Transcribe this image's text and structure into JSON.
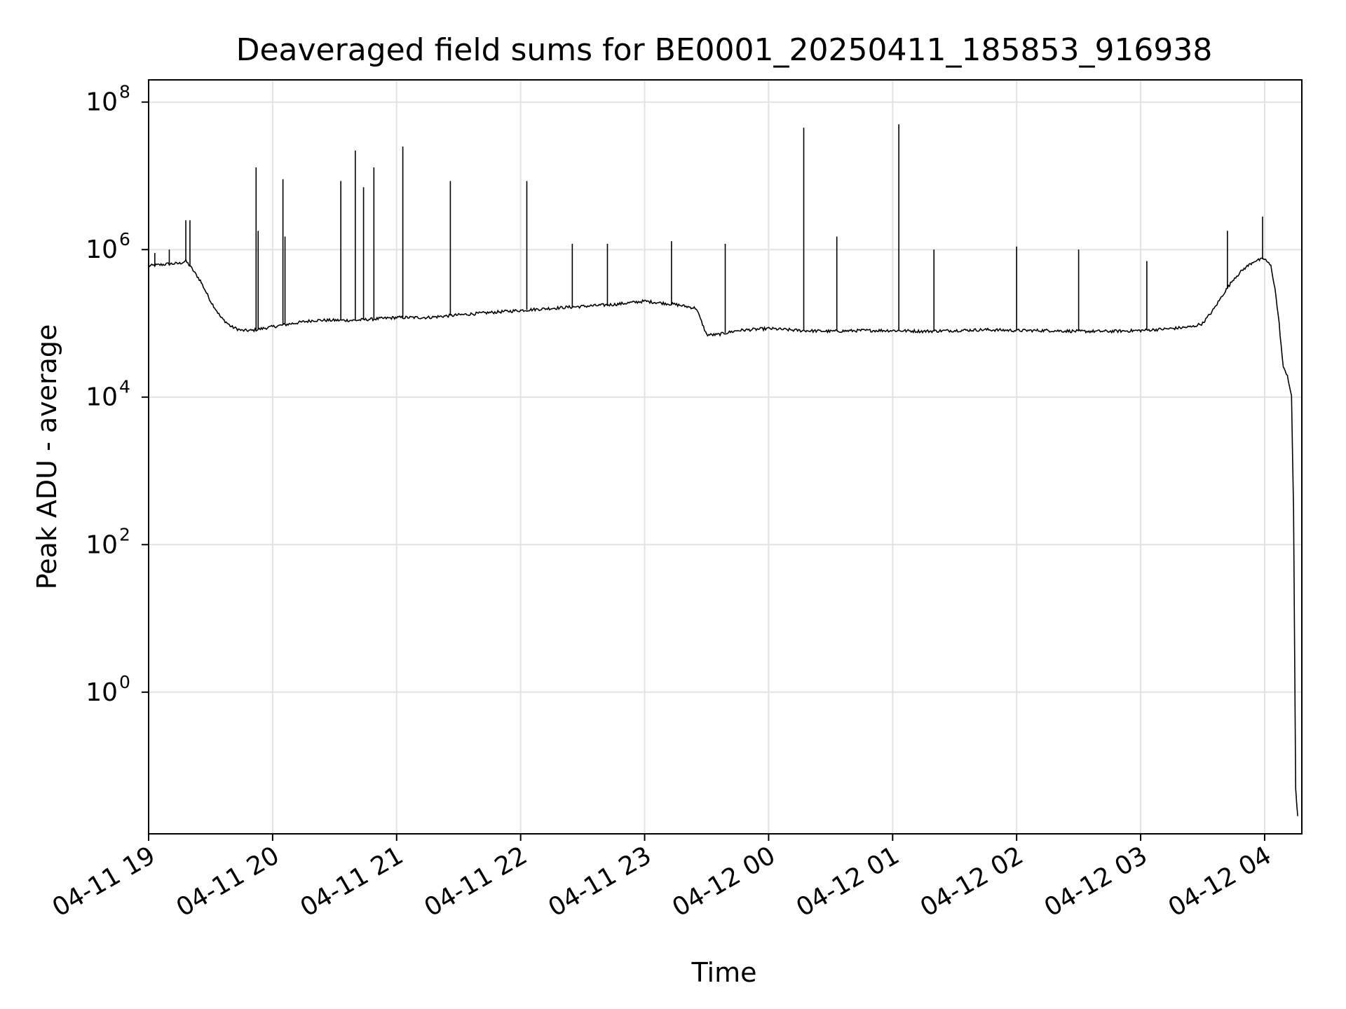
{
  "chart_data": {
    "type": "line",
    "title": "Deaveraged field sums for BE0001_20250411_185853_916938",
    "xlabel": "Time",
    "ylabel": "Peak ADU - average",
    "yscale": "log",
    "ylim": [
      0.012,
      200000000
    ],
    "xlim": [
      "04-11 19:00",
      "04-12 04:18"
    ],
    "grid": true,
    "line_color": "#000000",
    "x_ticks": [
      "04-11 19",
      "04-11 20",
      "04-11 21",
      "04-11 22",
      "04-11 23",
      "04-12 00",
      "04-12 01",
      "04-12 02",
      "04-12 03",
      "04-12 04"
    ],
    "y_ticks": [
      {
        "base": "10",
        "exp": "0",
        "value": 1
      },
      {
        "base": "10",
        "exp": "2",
        "value": 100
      },
      {
        "base": "10",
        "exp": "4",
        "value": 10000
      },
      {
        "base": "10",
        "exp": "6",
        "value": 1000000
      },
      {
        "base": "10",
        "exp": "8",
        "value": 100000000
      }
    ],
    "series": [
      {
        "x": [
          "04-11 19:00",
          "04-11 19:05",
          "04-11 19:10",
          "04-11 19:15",
          "04-11 19:18",
          "04-11 19:20",
          "04-11 19:25",
          "04-11 19:30",
          "04-11 19:35",
          "04-11 19:40",
          "04-11 19:45",
          "04-11 19:50",
          "04-11 19:55",
          "04-11 20:00",
          "04-11 20:10",
          "04-11 20:20",
          "04-11 20:30",
          "04-11 20:40",
          "04-11 20:50",
          "04-11 21:00",
          "04-11 21:15",
          "04-11 21:30",
          "04-11 21:45",
          "04-11 22:00",
          "04-11 22:15",
          "04-11 22:30",
          "04-11 22:45",
          "04-11 23:00",
          "04-11 23:15",
          "04-11 23:25",
          "04-11 23:30",
          "04-11 23:35",
          "04-11 23:45",
          "04-12 00:00",
          "04-12 00:15",
          "04-12 00:30",
          "04-12 00:45",
          "04-12 01:00",
          "04-12 01:15",
          "04-12 01:30",
          "04-12 01:45",
          "04-12 02:00",
          "04-12 02:15",
          "04-12 02:30",
          "04-12 02:45",
          "04-12 03:00",
          "04-12 03:15",
          "04-12 03:25",
          "04-12 03:30",
          "04-12 03:35",
          "04-12 03:40",
          "04-12 03:45",
          "04-12 03:50",
          "04-12 03:55",
          "04-12 04:00",
          "04-12 04:03",
          "04-12 04:05",
          "04-12 04:07",
          "04-12 04:09",
          "04-12 04:11",
          "04-12 04:13",
          "04-12 04:14",
          "04-12 04:15",
          "04-12 04:16"
        ],
        "y": [
          600000,
          620000,
          640000,
          650000,
          700000,
          600000,
          380000,
          200000,
          120000,
          90000,
          80000,
          80000,
          85000,
          90000,
          100000,
          110000,
          110000,
          110000,
          115000,
          120000,
          120000,
          130000,
          140000,
          150000,
          160000,
          170000,
          180000,
          200000,
          180000,
          160000,
          70000,
          70000,
          80000,
          85000,
          80000,
          78000,
          80000,
          80000,
          78000,
          80000,
          82000,
          80000,
          80000,
          78000,
          78000,
          80000,
          85000,
          90000,
          100000,
          150000,
          250000,
          400000,
          550000,
          700000,
          750000,
          600000,
          300000,
          100000,
          25000,
          20000,
          10000,
          300,
          0.05,
          0.02
        ]
      }
    ],
    "spikes": [
      {
        "x": "04-11 19:03",
        "y": 900000
      },
      {
        "x": "04-11 19:10",
        "y": 1000000
      },
      {
        "x": "04-11 19:18",
        "y": 2500000
      },
      {
        "x": "04-11 19:20",
        "y": 2500000
      },
      {
        "x": "04-11 19:52",
        "y": 13000000
      },
      {
        "x": "04-11 19:53",
        "y": 1800000
      },
      {
        "x": "04-11 20:05",
        "y": 9000000
      },
      {
        "x": "04-11 20:06",
        "y": 1500000
      },
      {
        "x": "04-11 20:33",
        "y": 8500000
      },
      {
        "x": "04-11 20:40",
        "y": 22000000
      },
      {
        "x": "04-11 20:44",
        "y": 7000000
      },
      {
        "x": "04-11 20:49",
        "y": 13000000
      },
      {
        "x": "04-11 21:03",
        "y": 25000000
      },
      {
        "x": "04-11 21:26",
        "y": 8500000
      },
      {
        "x": "04-11 22:03",
        "y": 8500000
      },
      {
        "x": "04-11 22:25",
        "y": 1200000
      },
      {
        "x": "04-11 22:42",
        "y": 1200000
      },
      {
        "x": "04-11 23:13",
        "y": 1300000
      },
      {
        "x": "04-11 23:39",
        "y": 1200000
      },
      {
        "x": "04-12 00:17",
        "y": 45000000
      },
      {
        "x": "04-12 00:33",
        "y": 1500000
      },
      {
        "x": "04-12 01:03",
        "y": 50000000
      },
      {
        "x": "04-12 01:20",
        "y": 1000000
      },
      {
        "x": "04-12 02:00",
        "y": 1100000
      },
      {
        "x": "04-12 02:30",
        "y": 1000000
      },
      {
        "x": "04-12 03:03",
        "y": 700000
      },
      {
        "x": "04-12 03:42",
        "y": 1800000
      },
      {
        "x": "04-12 03:59",
        "y": 2800000
      }
    ]
  }
}
